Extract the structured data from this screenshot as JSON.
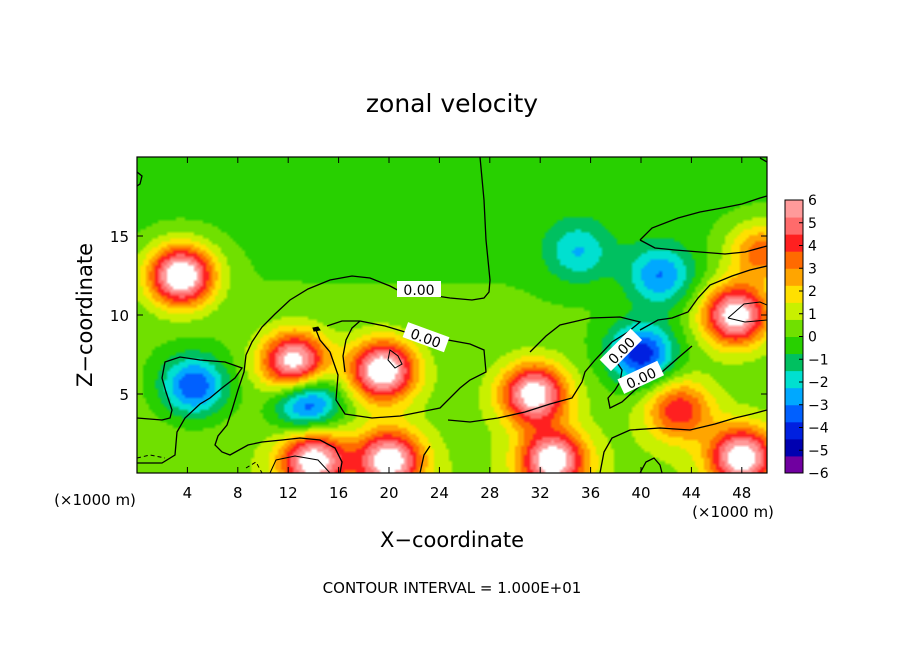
{
  "chart_data": {
    "type": "heatmap",
    "title": "zonal velocity",
    "xlabel": "X−coordinate",
    "ylabel": "Z−coordinate",
    "x_units": "(×1000 m)",
    "y_units": "(×1000 m)",
    "xlim": [
      0,
      50
    ],
    "ylim": [
      0,
      20
    ],
    "x_ticks": [
      "4",
      "8",
      "12",
      "16",
      "20",
      "24",
      "28",
      "32",
      "36",
      "40",
      "44",
      "48"
    ],
    "y_ticks": [
      "5",
      "10",
      "15"
    ],
    "colorbar": {
      "range": [
        -6,
        6
      ],
      "labels": [
        "6",
        "5",
        "4",
        "3",
        "2",
        "1",
        "0",
        "−1",
        "−2",
        "−3",
        "−4",
        "−5",
        "−6"
      ],
      "colors": [
        "#ff9a9a",
        "#ff6b6b",
        "#ff2020",
        "#ff6a00",
        "#ffa500",
        "#ffe000",
        "#c8f000",
        "#70e000",
        "#28d000",
        "#00c060",
        "#00e0d0",
        "#00a8ff",
        "#0060ff",
        "#0020e0",
        "#0000b0",
        "#7000a0"
      ]
    },
    "contour_labels": [
      "0.00",
      "0.00",
      "0.00",
      "0.00"
    ],
    "field_features": [
      {
        "kind": "max",
        "x": 3.5,
        "z": 12.5,
        "value": 7.5
      },
      {
        "kind": "max",
        "x": 19.5,
        "z": 6.5,
        "value": 7.0
      },
      {
        "kind": "max",
        "x": 12.5,
        "z": 7.0,
        "value": 6.8
      },
      {
        "kind": "max",
        "x": 47.5,
        "z": 10.0,
        "value": 6.8
      },
      {
        "kind": "max",
        "x": 31.5,
        "z": 5.0,
        "value": 6.5
      },
      {
        "kind": "max",
        "x": 14.0,
        "z": 0.8,
        "value": 6.5
      },
      {
        "kind": "max",
        "x": 20.0,
        "z": 0.8,
        "value": 6.5
      },
      {
        "kind": "max",
        "x": 33.0,
        "z": 0.8,
        "value": 6.5
      },
      {
        "kind": "max",
        "x": 48.0,
        "z": 1.0,
        "value": 6.5
      },
      {
        "kind": "max",
        "x": 43.0,
        "z": 4.0,
        "value": 4.0
      },
      {
        "kind": "max",
        "x": 49.5,
        "z": 14.0,
        "value": 3.5
      },
      {
        "kind": "min",
        "x": 4.5,
        "z": 5.5,
        "value": -4.0
      },
      {
        "kind": "min",
        "x": 13.5,
        "z": 4.5,
        "value": -4.5
      },
      {
        "kind": "min",
        "x": 40.0,
        "z": 7.5,
        "value": -4.5
      },
      {
        "kind": "min",
        "x": 35.0,
        "z": 14.0,
        "value": -2.2
      },
      {
        "kind": "min",
        "x": 41.5,
        "z": 12.5,
        "value": -3.0
      }
    ],
    "contour_interval_text": "CONTOUR INTERVAL = 1.000E+01"
  }
}
